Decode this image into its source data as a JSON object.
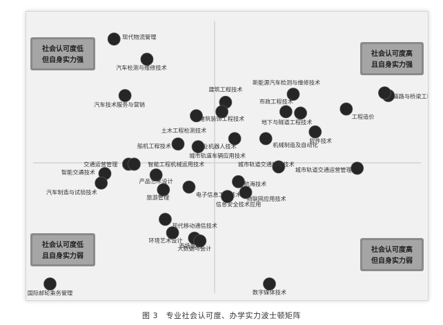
{
  "chart_data": {
    "type": "scatter",
    "title": "",
    "xlabel": "",
    "ylabel": "",
    "xlim": [
      -1,
      1
    ],
    "ylim": [
      -1,
      1
    ],
    "grid": false,
    "quadrants": {
      "top_left": [
        "社会认可度低",
        "但自身实力强"
      ],
      "top_right": [
        "社会认可度高",
        "且自身实力强"
      ],
      "bottom_left": [
        "社会认可度低",
        "且自身实力弱"
      ],
      "bottom_right": [
        "社会认可度高",
        "但自身实力弱"
      ]
    },
    "points": [
      {
        "label": "现代物流管理",
        "x": -0.55,
        "y": 0.92
      },
      {
        "label": "汽车检测与维修技术",
        "x": -0.37,
        "y": 0.77
      },
      {
        "label": "社会认可度高且自身实力强",
        "x": 0.95,
        "y": 0.5
      },
      {
        "label": "新能源汽车检测与维修技术",
        "x": 0.43,
        "y": 0.51
      },
      {
        "label": "汽车技术服务与营销",
        "x": -0.49,
        "y": 0.5
      },
      {
        "label": "道路与桥梁工程技术",
        "x": 0.93,
        "y": 0.52
      },
      {
        "label": "建筑工程技术",
        "x": 0.06,
        "y": 0.45
      },
      {
        "label": "市政工程技术",
        "x": 0.39,
        "y": 0.38
      },
      {
        "label": "工程造价",
        "x": 0.72,
        "y": 0.4
      },
      {
        "label": "建筑装饰工程技术",
        "x": 0.04,
        "y": 0.38
      },
      {
        "label": "地下与隧道工程技术",
        "x": 0.47,
        "y": 0.37
      },
      {
        "label": "土木工程检测技术",
        "x": -0.1,
        "y": 0.35
      },
      {
        "label": "软件技术",
        "x": 0.55,
        "y": 0.23
      },
      {
        "label": "工业机器人技术",
        "x": 0.11,
        "y": 0.18
      },
      {
        "label": "机械制造及自动化",
        "x": 0.28,
        "y": 0.18
      },
      {
        "label": "船机工程技术",
        "x": -0.2,
        "y": 0.14
      },
      {
        "label": "城市轨道车辆应用技术",
        "x": -0.09,
        "y": 0.12
      },
      {
        "label": "交通运营管理",
        "x": -0.47,
        "y": -0.01
      },
      {
        "label": "智能工程机械运用技术",
        "x": -0.44,
        "y": -0.01
      },
      {
        "label": "城市轨道交通运营管理",
        "x": 0.78,
        "y": -0.04
      },
      {
        "label": "城市轨道交通机电技术",
        "x": 0.35,
        "y": -0.03
      },
      {
        "label": "智能交通技术",
        "x": -0.6,
        "y": -0.08
      },
      {
        "label": "产品艺术设计",
        "x": -0.32,
        "y": -0.09
      },
      {
        "label": "航海技术",
        "x": 0.13,
        "y": -0.14
      },
      {
        "label": "汽车制造与试验技术",
        "x": -0.62,
        "y": -0.15
      },
      {
        "label": "旅游管理",
        "x": -0.28,
        "y": -0.2
      },
      {
        "label": "电子信息工程技术",
        "x": -0.14,
        "y": -0.18
      },
      {
        "label": "物联网应用技术",
        "x": 0.17,
        "y": -0.22
      },
      {
        "label": "信息安全技术应用",
        "x": 0.07,
        "y": -0.25
      },
      {
        "label": "现代移动通信技术",
        "x": -0.27,
        "y": -0.42
      },
      {
        "label": "环境艺术设计",
        "x": -0.23,
        "y": -0.52
      },
      {
        "label": "市场营销",
        "x": -0.11,
        "y": -0.56
      },
      {
        "label": "大数据与会计",
        "x": -0.08,
        "y": -0.58
      },
      {
        "label": "数字媒体技术",
        "x": 0.3,
        "y": -0.9
      },
      {
        "label": "国际邮轮乘务管理",
        "x": -0.9,
        "y": -0.9
      }
    ]
  },
  "caption": "图 3　专业社会认可度、办学实力波士顿矩阵"
}
